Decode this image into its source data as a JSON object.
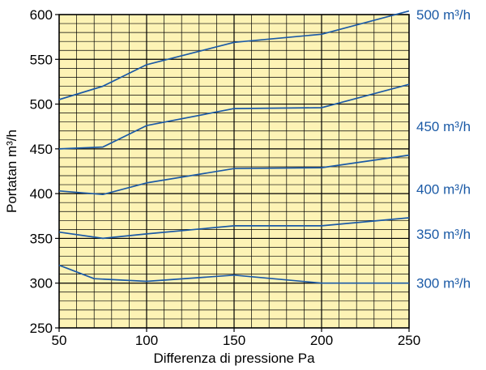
{
  "chart_data": {
    "type": "line",
    "xlabel": "Differenza di pressione Pa",
    "ylabel": "Portatan m³/h",
    "xlim": [
      50,
      250
    ],
    "ylim": [
      250,
      600
    ],
    "x_ticks": [
      50,
      100,
      150,
      200,
      250
    ],
    "y_ticks": [
      250,
      300,
      350,
      400,
      450,
      500,
      550,
      600
    ],
    "grid": true,
    "plot_background": "#fdf3b5",
    "grid_color": "#000000",
    "line_color": "#1b5aa6",
    "label_color": "#1b5aa6",
    "series": [
      {
        "name": "300 m³/h",
        "label_y": 300,
        "x": [
          50,
          70,
          100,
          150,
          200,
          250
        ],
        "y": [
          320,
          305,
          302,
          309,
          300,
          300
        ]
      },
      {
        "name": "350 m³/h",
        "label_y": 355,
        "x": [
          50,
          75,
          100,
          150,
          200,
          250
        ],
        "y": [
          357,
          350,
          355,
          364,
          364,
          373
        ]
      },
      {
        "name": "400 m³/h",
        "label_y": 405,
        "x": [
          50,
          75,
          100,
          150,
          200,
          250
        ],
        "y": [
          403,
          399,
          412,
          428,
          429,
          443
        ]
      },
      {
        "name": "450 m³/h",
        "label_y": 475,
        "x": [
          50,
          75,
          100,
          150,
          200,
          250
        ],
        "y": [
          450,
          452,
          476,
          495,
          496,
          522
        ]
      },
      {
        "name": "500 m³/h",
        "label_y": 600,
        "x": [
          50,
          75,
          100,
          150,
          200,
          250
        ],
        "y": [
          505,
          520,
          544,
          569,
          578,
          604
        ]
      }
    ]
  }
}
